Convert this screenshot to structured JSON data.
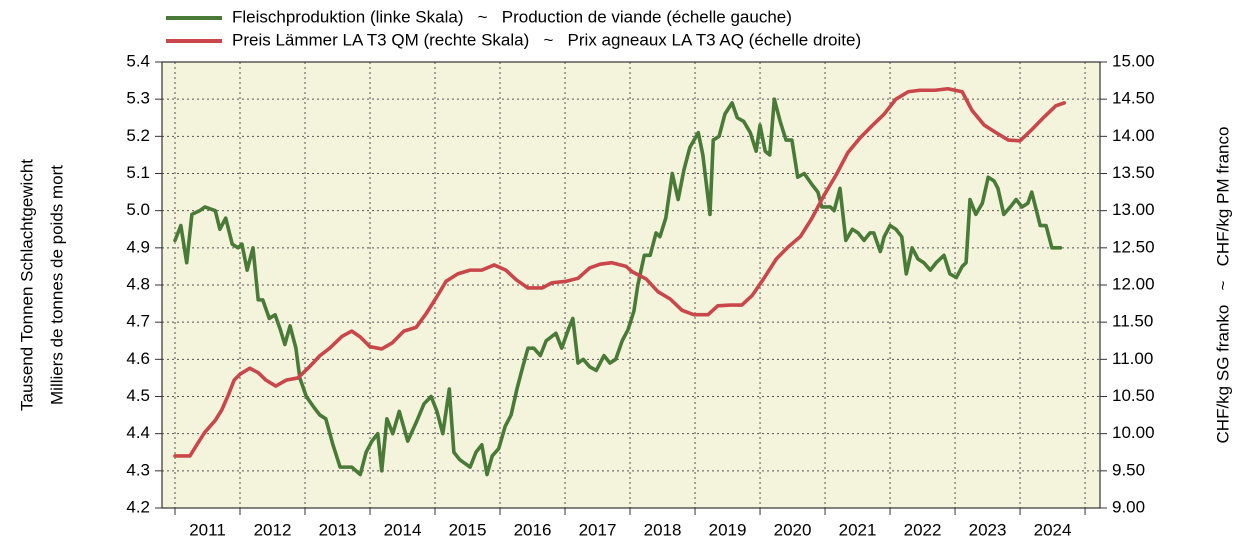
{
  "chart_data": {
    "type": "line",
    "legend": "top",
    "grid": true,
    "xlim": [
      2010.8,
      2025.23
    ],
    "xgrid": [
      2011,
      2012,
      2013,
      2014,
      2015,
      2016,
      2017,
      2018,
      2019,
      2020,
      2021,
      2022,
      2023,
      2024,
      2025
    ],
    "xticks": [
      {
        "value": 2011.5,
        "label": "2011"
      },
      {
        "value": 2012.5,
        "label": "2012"
      },
      {
        "value": 2013.5,
        "label": "2013"
      },
      {
        "value": 2014.5,
        "label": "2014"
      },
      {
        "value": 2015.5,
        "label": "2015"
      },
      {
        "value": 2016.5,
        "label": "2016"
      },
      {
        "value": 2017.5,
        "label": "2017"
      },
      {
        "value": 2018.5,
        "label": "2018"
      },
      {
        "value": 2019.5,
        "label": "2019"
      },
      {
        "value": 2020.5,
        "label": "2020"
      },
      {
        "value": 2021.5,
        "label": "2021"
      },
      {
        "value": 2022.5,
        "label": "2022"
      },
      {
        "value": 2023.5,
        "label": "2023"
      },
      {
        "value": 2024.5,
        "label": "2024"
      }
    ],
    "ylabel": [
      "Tausend Tonnen Schlachtgewicht",
      "Milliers de tonnes de poids mort"
    ],
    "y2label": "CHF/kg SG franko   ~   CHF/kg PM franco",
    "ylim": [
      4.2,
      5.4
    ],
    "yticks": [
      4.2,
      4.3,
      4.4,
      4.5,
      4.6,
      4.7,
      4.8,
      4.9,
      {
        "value": 5,
        "label": "5.0"
      },
      5.1,
      5.2,
      5.3,
      5.4
    ],
    "y2lim": [
      9,
      15
    ],
    "y2ticks": [
      {
        "value": 9,
        "label": "9.00"
      },
      {
        "value": 9.5,
        "label": "9.50"
      },
      {
        "value": 10,
        "label": "10.00"
      },
      {
        "value": 10.5,
        "label": "10.50"
      },
      {
        "value": 11,
        "label": "11.00"
      },
      {
        "value": 11.5,
        "label": "11.50"
      },
      {
        "value": 12,
        "label": "12.00"
      },
      {
        "value": 12.5,
        "label": "12.50"
      },
      {
        "value": 13,
        "label": "13.00"
      },
      {
        "value": 13.5,
        "label": "13.50"
      },
      {
        "value": 14,
        "label": "14.00"
      },
      {
        "value": 14.5,
        "label": "14.50"
      },
      {
        "value": 15,
        "label": "15.00"
      }
    ],
    "series": [
      {
        "name": "Fleischproduktion (linke Skala)   ~   Production de viande (échelle gauche)",
        "color": "#4a7a37",
        "axis": "y",
        "x": [
          2011.0,
          2011.09,
          2011.18,
          2011.26,
          2011.38,
          2011.46,
          2011.62,
          2011.69,
          2011.78,
          2011.88,
          2011.97,
          2012.03,
          2012.11,
          2012.2,
          2012.28,
          2012.35,
          2012.45,
          2012.54,
          2012.62,
          2012.69,
          2012.77,
          2012.86,
          2012.92,
          2013.02,
          2013.14,
          2013.23,
          2013.32,
          2013.43,
          2013.54,
          2013.72,
          2013.85,
          2013.94,
          2014.03,
          2014.12,
          2014.18,
          2014.26,
          2014.35,
          2014.45,
          2014.58,
          2014.71,
          2014.83,
          2014.94,
          2015.03,
          2015.12,
          2015.22,
          2015.29,
          2015.38,
          2015.54,
          2015.63,
          2015.72,
          2015.8,
          2015.88,
          2015.98,
          2016.08,
          2016.17,
          2016.26,
          2016.35,
          2016.43,
          2016.52,
          2016.62,
          2016.71,
          2016.86,
          2016.95,
          2017.05,
          2017.12,
          2017.2,
          2017.28,
          2017.38,
          2017.48,
          2017.6,
          2017.69,
          2017.78,
          2017.88,
          2017.97,
          2018.06,
          2018.12,
          2018.22,
          2018.31,
          2018.4,
          2018.46,
          2018.55,
          2018.65,
          2018.74,
          2018.83,
          2018.92,
          2019.05,
          2019.12,
          2019.23,
          2019.28,
          2019.37,
          2019.46,
          2019.57,
          2019.65,
          2019.75,
          2019.85,
          2019.94,
          2020.0,
          2020.08,
          2020.15,
          2020.22,
          2020.31,
          2020.4,
          2020.49,
          2020.58,
          2020.68,
          2020.8,
          2020.89,
          2020.95,
          2021.08,
          2021.14,
          2021.23,
          2021.32,
          2021.42,
          2021.51,
          2021.6,
          2021.69,
          2021.75,
          2021.85,
          2021.91,
          2022.0,
          2022.09,
          2022.18,
          2022.25,
          2022.34,
          2022.43,
          2022.52,
          2022.62,
          2022.71,
          2022.83,
          2022.92,
          2023.02,
          2023.11,
          2023.17,
          2023.23,
          2023.32,
          2023.42,
          2023.51,
          2023.6,
          2023.66,
          2023.75,
          2023.85,
          2023.94,
          2024.03,
          2024.12,
          2024.18,
          2024.31,
          2024.4,
          2024.49,
          2024.62
        ],
        "values": [
          4.92,
          4.96,
          4.86,
          4.99,
          5.0,
          5.01,
          5.0,
          4.95,
          4.98,
          4.91,
          4.9,
          4.91,
          4.84,
          4.9,
          4.76,
          4.76,
          4.71,
          4.72,
          4.68,
          4.64,
          4.69,
          4.63,
          4.55,
          4.5,
          4.47,
          4.45,
          4.44,
          4.37,
          4.31,
          4.31,
          4.29,
          4.35,
          4.38,
          4.4,
          4.3,
          4.44,
          4.4,
          4.46,
          4.38,
          4.43,
          4.48,
          4.5,
          4.46,
          4.4,
          4.52,
          4.35,
          4.33,
          4.31,
          4.35,
          4.37,
          4.29,
          4.34,
          4.36,
          4.42,
          4.45,
          4.52,
          4.58,
          4.63,
          4.63,
          4.61,
          4.65,
          4.67,
          4.63,
          4.68,
          4.71,
          4.59,
          4.6,
          4.58,
          4.57,
          4.61,
          4.59,
          4.6,
          4.65,
          4.68,
          4.73,
          4.8,
          4.88,
          4.88,
          4.94,
          4.93,
          4.98,
          5.1,
          5.03,
          5.11,
          5.17,
          5.21,
          5.15,
          4.99,
          5.19,
          5.2,
          5.26,
          5.29,
          5.25,
          5.24,
          5.21,
          5.16,
          5.23,
          5.16,
          5.15,
          5.3,
          5.24,
          5.19,
          5.19,
          5.09,
          5.1,
          5.07,
          5.05,
          5.01,
          5.01,
          5.0,
          5.06,
          4.92,
          4.95,
          4.94,
          4.92,
          4.94,
          4.94,
          4.89,
          4.93,
          4.96,
          4.95,
          4.93,
          4.83,
          4.9,
          4.87,
          4.86,
          4.84,
          4.86,
          4.88,
          4.83,
          4.82,
          4.85,
          4.86,
          5.03,
          4.99,
          5.02,
          5.09,
          5.08,
          5.06,
          4.99,
          5.01,
          5.03,
          5.01,
          5.02,
          5.05,
          4.96,
          4.96,
          4.9,
          4.9
        ]
      },
      {
        "name": "Preis Lämmer LA T3 QM (rechte Skala)   ~   Prix agneaux LA T3 AQ (échelle droite)",
        "color": "#c9464a",
        "axis": "y2",
        "x": [
          2011.0,
          2011.23,
          2011.35,
          2011.46,
          2011.62,
          2011.72,
          2011.82,
          2011.91,
          2012.0,
          2012.15,
          2012.28,
          2012.4,
          2012.55,
          2012.71,
          2012.89,
          2013.08,
          2013.23,
          2013.38,
          2013.57,
          2013.72,
          2013.85,
          2014.0,
          2014.18,
          2014.34,
          2014.52,
          2014.71,
          2014.86,
          2015.02,
          2015.17,
          2015.35,
          2015.54,
          2015.72,
          2015.91,
          2016.09,
          2016.25,
          2016.43,
          2016.65,
          2016.8,
          2017.02,
          2017.2,
          2017.38,
          2017.54,
          2017.72,
          2017.94,
          2018.03,
          2018.25,
          2018.43,
          2018.62,
          2018.8,
          2018.98,
          2019.2,
          2019.35,
          2019.54,
          2019.72,
          2019.88,
          2020.06,
          2020.25,
          2020.43,
          2020.62,
          2020.8,
          2020.98,
          2021.17,
          2021.35,
          2021.54,
          2021.72,
          2021.91,
          2022.09,
          2022.28,
          2022.46,
          2022.69,
          2022.89,
          2023.11,
          2023.26,
          2023.45,
          2023.63,
          2023.82,
          2024.0,
          2024.18,
          2024.37,
          2024.55,
          2024.68
        ],
        "values": [
          9.7,
          9.7,
          9.87,
          10.02,
          10.18,
          10.32,
          10.52,
          10.72,
          10.8,
          10.88,
          10.82,
          10.72,
          10.64,
          10.72,
          10.75,
          10.91,
          11.05,
          11.15,
          11.31,
          11.38,
          11.3,
          11.17,
          11.14,
          11.22,
          11.38,
          11.43,
          11.61,
          11.83,
          12.05,
          12.15,
          12.2,
          12.2,
          12.27,
          12.2,
          12.07,
          11.96,
          11.96,
          12.03,
          12.05,
          12.09,
          12.23,
          12.28,
          12.3,
          12.25,
          12.18,
          12.08,
          11.91,
          11.81,
          11.66,
          11.6,
          11.6,
          11.72,
          11.73,
          11.73,
          11.86,
          12.09,
          12.35,
          12.51,
          12.65,
          12.9,
          13.2,
          13.48,
          13.78,
          13.98,
          14.14,
          14.3,
          14.5,
          14.6,
          14.62,
          14.62,
          14.64,
          14.6,
          14.35,
          14.15,
          14.05,
          13.95,
          13.94,
          14.09,
          14.26,
          14.41,
          14.45
        ]
      }
    ]
  }
}
